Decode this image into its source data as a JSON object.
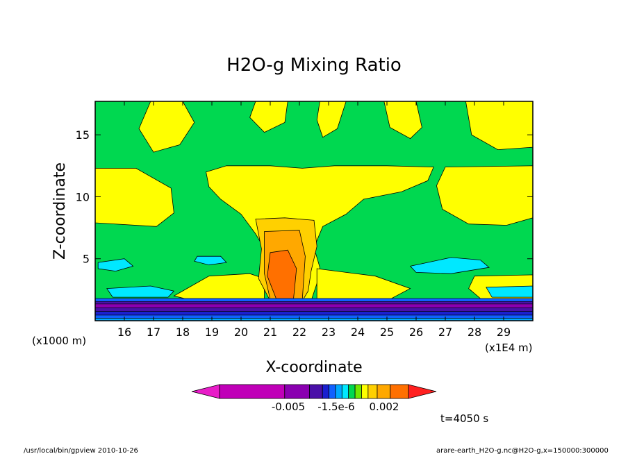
{
  "chart_data": {
    "type": "heatmap",
    "title": "H2O-g Mixing Ratio",
    "xlabel": "X-coordinate",
    "ylabel": "Z-coordinate",
    "x_unit_label": "(x1E4 m)",
    "y_unit_label": "(x1000 m)",
    "xlim": [
      15.0,
      30.0
    ],
    "ylim": [
      0.0,
      17.7
    ],
    "x_ticks": [
      16,
      17,
      18,
      19,
      20,
      21,
      22,
      23,
      24,
      25,
      26,
      27,
      28,
      29
    ],
    "y_ticks": [
      5,
      10,
      15
    ],
    "x_tick_labels": [
      "16",
      "17",
      "18",
      "19",
      "20",
      "21",
      "22",
      "23",
      "24",
      "25",
      "26",
      "27",
      "28",
      "29"
    ],
    "y_tick_labels": [
      "5",
      "10",
      "15"
    ],
    "colorbar": {
      "labels": [
        "-0.005",
        "-1.5e-6",
        "0.002"
      ],
      "colors": [
        "#e81cc8",
        "#c000b8",
        "#8a00b0",
        "#4a10a8",
        "#1a20d0",
        "#1060ff",
        "#00a8ff",
        "#00e8ff",
        "#00d850",
        "#70e800",
        "#ffff00",
        "#ffd000",
        "#ffa800",
        "#ff7000",
        "#ff2020"
      ]
    },
    "regions": [
      {
        "name": "upper-left-plume",
        "level": "0.002",
        "color": "#ffff00",
        "shape": [
          [
            16.9,
            17.7
          ],
          [
            18.0,
            17.7
          ],
          [
            18.4,
            16.0
          ],
          [
            17.9,
            14.2
          ],
          [
            17.0,
            13.6
          ],
          [
            16.5,
            15.5
          ]
        ]
      },
      {
        "name": "upper-mid-band",
        "level": "0.002",
        "color": "#ffff00",
        "shape": [
          [
            20.5,
            17.7
          ],
          [
            21.6,
            17.7
          ],
          [
            21.5,
            16.0
          ],
          [
            20.8,
            15.2
          ],
          [
            20.3,
            16.4
          ]
        ]
      },
      {
        "name": "upper-right-streak",
        "level": "0.002",
        "color": "#ffff00",
        "shape": [
          [
            22.7,
            17.7
          ],
          [
            23.6,
            17.7
          ],
          [
            23.3,
            15.5
          ],
          [
            22.8,
            14.8
          ],
          [
            22.6,
            16.2
          ]
        ]
      },
      {
        "name": "upper-right-patch",
        "level": "0.002",
        "color": "#ffff00",
        "shape": [
          [
            24.9,
            17.7
          ],
          [
            26.0,
            17.7
          ],
          [
            26.2,
            15.6
          ],
          [
            25.8,
            14.7
          ],
          [
            25.1,
            15.6
          ]
        ]
      },
      {
        "name": "upper-right-corner",
        "level": "0.002",
        "color": "#ffff00",
        "shape": [
          [
            27.7,
            17.7
          ],
          [
            30.0,
            17.7
          ],
          [
            30.0,
            14.0
          ],
          [
            28.8,
            13.8
          ],
          [
            27.9,
            15.0
          ]
        ]
      },
      {
        "name": "left-lobe",
        "level": "0.002",
        "color": "#ffff00",
        "shape": [
          [
            15.0,
            12.3
          ],
          [
            16.4,
            12.3
          ],
          [
            17.6,
            10.7
          ],
          [
            17.7,
            8.7
          ],
          [
            17.1,
            7.6
          ],
          [
            15.0,
            7.9
          ]
        ]
      },
      {
        "name": "anvil",
        "level": "0.002",
        "color": "#ffff00",
        "shape": [
          [
            18.8,
            12.0
          ],
          [
            19.5,
            12.5
          ],
          [
            21.0,
            12.5
          ],
          [
            22.1,
            12.3
          ],
          [
            23.2,
            12.5
          ],
          [
            25.0,
            12.5
          ],
          [
            26.6,
            12.4
          ],
          [
            26.4,
            11.3
          ],
          [
            25.5,
            10.4
          ],
          [
            24.2,
            9.8
          ],
          [
            23.6,
            8.6
          ],
          [
            22.8,
            7.6
          ],
          [
            22.5,
            5.9
          ],
          [
            22.7,
            4.3
          ],
          [
            22.6,
            3.0
          ],
          [
            22.4,
            1.6
          ],
          [
            21.5,
            1.6
          ],
          [
            21.0,
            1.6
          ],
          [
            20.8,
            3.2
          ],
          [
            20.9,
            5.4
          ],
          [
            20.5,
            7.0
          ],
          [
            20.0,
            8.6
          ],
          [
            19.3,
            9.8
          ],
          [
            18.9,
            10.8
          ]
        ]
      },
      {
        "name": "right-lobe",
        "level": "0.002",
        "color": "#ffff00",
        "shape": [
          [
            27.0,
            12.4
          ],
          [
            30.0,
            12.5
          ],
          [
            30.0,
            8.3
          ],
          [
            29.1,
            7.7
          ],
          [
            27.8,
            7.8
          ],
          [
            26.9,
            9.0
          ],
          [
            26.7,
            10.9
          ]
        ]
      },
      {
        "name": "low-left-band",
        "level": "0.002",
        "color": "#ffff00",
        "shape": [
          [
            18.9,
            3.6
          ],
          [
            20.3,
            3.8
          ],
          [
            20.8,
            3.4
          ],
          [
            20.8,
            1.6
          ],
          [
            18.4,
            1.6
          ],
          [
            17.7,
            2.0
          ]
        ]
      },
      {
        "name": "low-right-band",
        "level": "0.002",
        "color": "#ffff00",
        "shape": [
          [
            22.6,
            4.2
          ],
          [
            24.6,
            3.6
          ],
          [
            25.8,
            2.6
          ],
          [
            25.0,
            1.6
          ],
          [
            22.6,
            1.6
          ]
        ]
      },
      {
        "name": "far-right-low",
        "level": "0.002",
        "color": "#ffff00",
        "shape": [
          [
            28.0,
            3.6
          ],
          [
            30.0,
            3.7
          ],
          [
            30.0,
            1.6
          ],
          [
            28.3,
            1.6
          ],
          [
            27.8,
            2.6
          ]
        ]
      },
      {
        "name": "core-outer",
        "level": "0.003",
        "color": "#ffd000",
        "shape": [
          [
            20.5,
            8.2
          ],
          [
            21.5,
            8.3
          ],
          [
            22.5,
            8.1
          ],
          [
            22.6,
            6.0
          ],
          [
            22.4,
            4.0
          ],
          [
            22.3,
            2.4
          ],
          [
            22.1,
            1.6
          ],
          [
            21.0,
            1.6
          ],
          [
            20.6,
            3.4
          ],
          [
            20.7,
            5.8
          ]
        ]
      },
      {
        "name": "core-mid",
        "level": "0.004",
        "color": "#ffa800",
        "shape": [
          [
            20.8,
            7.2
          ],
          [
            22.0,
            7.3
          ],
          [
            22.2,
            5.2
          ],
          [
            22.1,
            1.7
          ],
          [
            21.0,
            1.7
          ],
          [
            20.8,
            3.8
          ]
        ]
      },
      {
        "name": "core-inner",
        "level": "0.005",
        "color": "#ff7000",
        "shape": [
          [
            21.0,
            5.5
          ],
          [
            21.6,
            5.7
          ],
          [
            21.9,
            4.2
          ],
          [
            21.8,
            1.8
          ],
          [
            21.2,
            1.8
          ],
          [
            20.9,
            3.6
          ]
        ]
      },
      {
        "name": "left-cyan-upper",
        "level": "-1.5e-6",
        "color": "#00e8ff",
        "shape": [
          [
            15.1,
            4.7
          ],
          [
            16.0,
            5.0
          ],
          [
            16.3,
            4.4
          ],
          [
            15.7,
            4.0
          ],
          [
            15.1,
            4.2
          ]
        ]
      },
      {
        "name": "left-cyan-lower",
        "level": "-1.5e-6",
        "color": "#00e8ff",
        "shape": [
          [
            15.4,
            2.6
          ],
          [
            16.9,
            2.8
          ],
          [
            17.7,
            2.4
          ],
          [
            17.5,
            1.9
          ],
          [
            15.6,
            1.9
          ]
        ]
      },
      {
        "name": "mid-cyan",
        "level": "-1.5e-6",
        "color": "#00e8ff",
        "shape": [
          [
            18.5,
            5.2
          ],
          [
            19.3,
            5.2
          ],
          [
            19.5,
            4.7
          ],
          [
            18.9,
            4.5
          ],
          [
            18.4,
            4.8
          ]
        ]
      },
      {
        "name": "right-cyan-upper",
        "level": "-1.5e-6",
        "color": "#00e8ff",
        "shape": [
          [
            25.8,
            4.4
          ],
          [
            27.2,
            5.1
          ],
          [
            28.2,
            4.9
          ],
          [
            28.5,
            4.3
          ],
          [
            27.2,
            3.8
          ],
          [
            26.0,
            3.9
          ]
        ]
      },
      {
        "name": "right-cyan-lower",
        "level": "-1.5e-6",
        "color": "#00e8ff",
        "shape": [
          [
            28.4,
            2.7
          ],
          [
            30.0,
            2.8
          ],
          [
            30.0,
            1.9
          ],
          [
            28.6,
            1.9
          ]
        ]
      }
    ],
    "strata": [
      {
        "z0": 1.55,
        "z1": 1.8,
        "color": "#1060ff"
      },
      {
        "z0": 1.35,
        "z1": 1.55,
        "color": "#4a10a8"
      },
      {
        "z0": 1.05,
        "z1": 1.35,
        "color": "#8a00b0"
      },
      {
        "z0": 0.75,
        "z1": 1.05,
        "color": "#4a10a8"
      },
      {
        "z0": 0.45,
        "z1": 0.75,
        "color": "#1a20d0"
      },
      {
        "z0": 0.2,
        "z1": 0.45,
        "color": "#1060ff"
      },
      {
        "z0": 0.0,
        "z1": 0.2,
        "color": "#00a8ff"
      }
    ],
    "background_color": "#00d850"
  },
  "labels": {
    "title": "H2O-g Mixing Ratio",
    "xlabel": "X-coordinate",
    "ylabel": "Z-coordinate",
    "x_unit": "(x1E4 m)",
    "y_unit": "(x1000 m)",
    "time": "t=4050 s",
    "footer_left": "/usr/local/bin/gpview  2010-10-26",
    "footer_right": "arare-earth_H2O-g.nc@H2O-g,x=150000:300000"
  }
}
